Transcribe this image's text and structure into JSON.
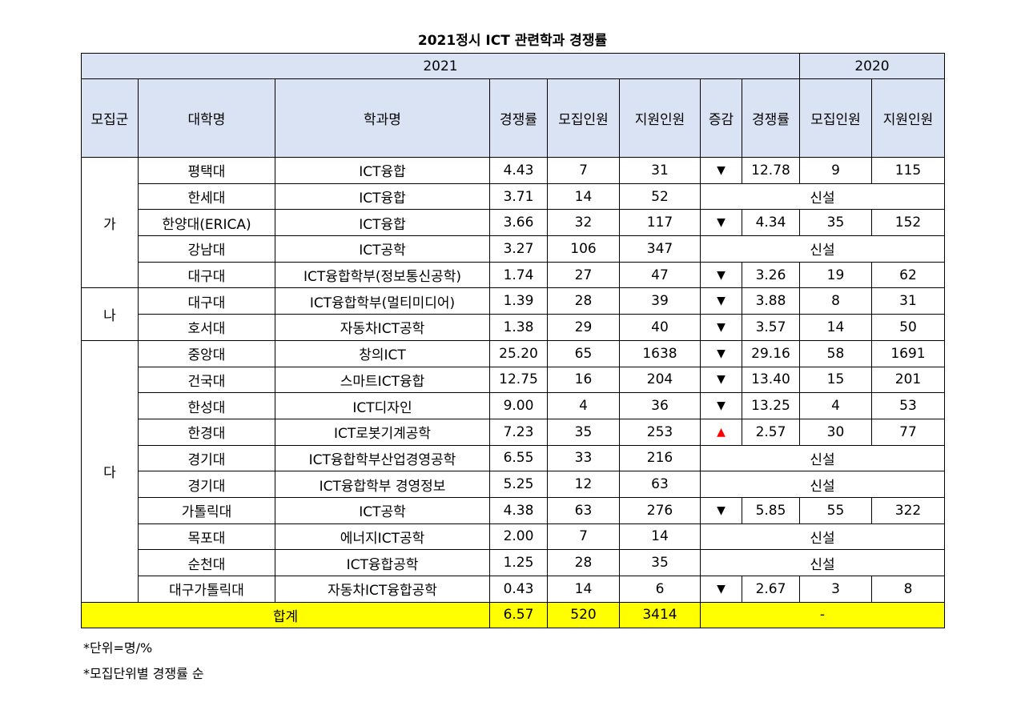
{
  "title": "2021정시 ICT 관련학과 경쟁률",
  "headers": {
    "year_2021": "2021",
    "year_2020": "2020",
    "group": "모집군",
    "university": "대학명",
    "department": "학과명",
    "rate_2021": "경쟁률",
    "quota_2021": "모집인원",
    "applicants_2021": "지원인원",
    "change": "증감",
    "rate_2020": "경쟁률",
    "quota_2020": "모집인원",
    "applicants_2020": "지원인원"
  },
  "groups": [
    "가",
    "나",
    "다"
  ],
  "rows": [
    {
      "group": "가",
      "univ": "평택대",
      "dept": "ICT융합",
      "rate": "4.43",
      "quota": "7",
      "applicants": "31",
      "change": "▼",
      "prev_rate": "12.78",
      "prev_quota": "9",
      "prev_applicants": "115"
    },
    {
      "group": "가",
      "univ": "한세대",
      "dept": "ICT융합",
      "rate": "3.71",
      "quota": "14",
      "applicants": "52",
      "new": "신설"
    },
    {
      "group": "가",
      "univ": "한양대(ERICA)",
      "dept": "ICT융합",
      "rate": "3.66",
      "quota": "32",
      "applicants": "117",
      "change": "▼",
      "prev_rate": "4.34",
      "prev_quota": "35",
      "prev_applicants": "152"
    },
    {
      "group": "가",
      "univ": "강남대",
      "dept": "ICT공학",
      "rate": "3.27",
      "quota": "106",
      "applicants": "347",
      "new": "신설"
    },
    {
      "group": "가",
      "univ": "대구대",
      "dept": "ICT융합학부(정보통신공학)",
      "rate": "1.74",
      "quota": "27",
      "applicants": "47",
      "change": "▼",
      "prev_rate": "3.26",
      "prev_quota": "19",
      "prev_applicants": "62"
    },
    {
      "group": "나",
      "univ": "대구대",
      "dept": "ICT융합학부(멀티미디어)",
      "rate": "1.39",
      "quota": "28",
      "applicants": "39",
      "change": "▼",
      "prev_rate": "3.88",
      "prev_quota": "8",
      "prev_applicants": "31"
    },
    {
      "group": "나",
      "univ": "호서대",
      "dept": "자동차ICT공학",
      "rate": "1.38",
      "quota": "29",
      "applicants": "40",
      "change": "▼",
      "prev_rate": "3.57",
      "prev_quota": "14",
      "prev_applicants": "50"
    },
    {
      "group": "다",
      "univ": "중앙대",
      "dept": "창의ICT",
      "rate": "25.20",
      "quota": "65",
      "applicants": "1638",
      "change": "▼",
      "prev_rate": "29.16",
      "prev_quota": "58",
      "prev_applicants": "1691"
    },
    {
      "group": "다",
      "univ": "건국대",
      "dept": "스마트ICT융합",
      "rate": "12.75",
      "quota": "16",
      "applicants": "204",
      "change": "▼",
      "prev_rate": "13.40",
      "prev_quota": "15",
      "prev_applicants": "201"
    },
    {
      "group": "다",
      "univ": "한성대",
      "dept": "ICT디자인",
      "rate": "9.00",
      "quota": "4",
      "applicants": "36",
      "change": "▼",
      "prev_rate": "13.25",
      "prev_quota": "4",
      "prev_applicants": "53"
    },
    {
      "group": "다",
      "univ": "한경대",
      "dept": "ICT로봇기계공학",
      "rate": "7.23",
      "quota": "35",
      "applicants": "253",
      "change": "▲",
      "prev_rate": "2.57",
      "prev_quota": "30",
      "prev_applicants": "77"
    },
    {
      "group": "다",
      "univ": "경기대",
      "dept": "ICT융합학부산업경영공학",
      "rate": "6.55",
      "quota": "33",
      "applicants": "216",
      "new": "신설"
    },
    {
      "group": "다",
      "univ": "경기대",
      "dept": "ICT융합학부 경영정보",
      "rate": "5.25",
      "quota": "12",
      "applicants": "63",
      "new": "신설"
    },
    {
      "group": "다",
      "univ": "가톨릭대",
      "dept": "ICT공학",
      "rate": "4.38",
      "quota": "63",
      "applicants": "276",
      "change": "▼",
      "prev_rate": "5.85",
      "prev_quota": "55",
      "prev_applicants": "322"
    },
    {
      "group": "다",
      "univ": "목포대",
      "dept": "에너지ICT공학",
      "rate": "2.00",
      "quota": "7",
      "applicants": "14",
      "new": "신설"
    },
    {
      "group": "다",
      "univ": "순천대",
      "dept": "ICT융합공학",
      "rate": "1.25",
      "quota": "28",
      "applicants": "35",
      "new": "신설"
    },
    {
      "group": "다",
      "univ": "대구가톨릭대",
      "dept": "자동차ICT융합공학",
      "rate": "0.43",
      "quota": "14",
      "applicants": "6",
      "change": "▼",
      "prev_rate": "2.67",
      "prev_quota": "3",
      "prev_applicants": "8"
    }
  ],
  "total": {
    "label": "합계",
    "rate": "6.57",
    "quota": "520",
    "applicants": "3414",
    "prev": "-"
  },
  "notes": [
    "*단위=명/%",
    "*모집단위별 경쟁률 순"
  ],
  "colors": {
    "header_bg": "#dae3f3",
    "total_bg": "#ffff00",
    "up_arrow": "#ff0000",
    "down_arrow": "#000000"
  }
}
